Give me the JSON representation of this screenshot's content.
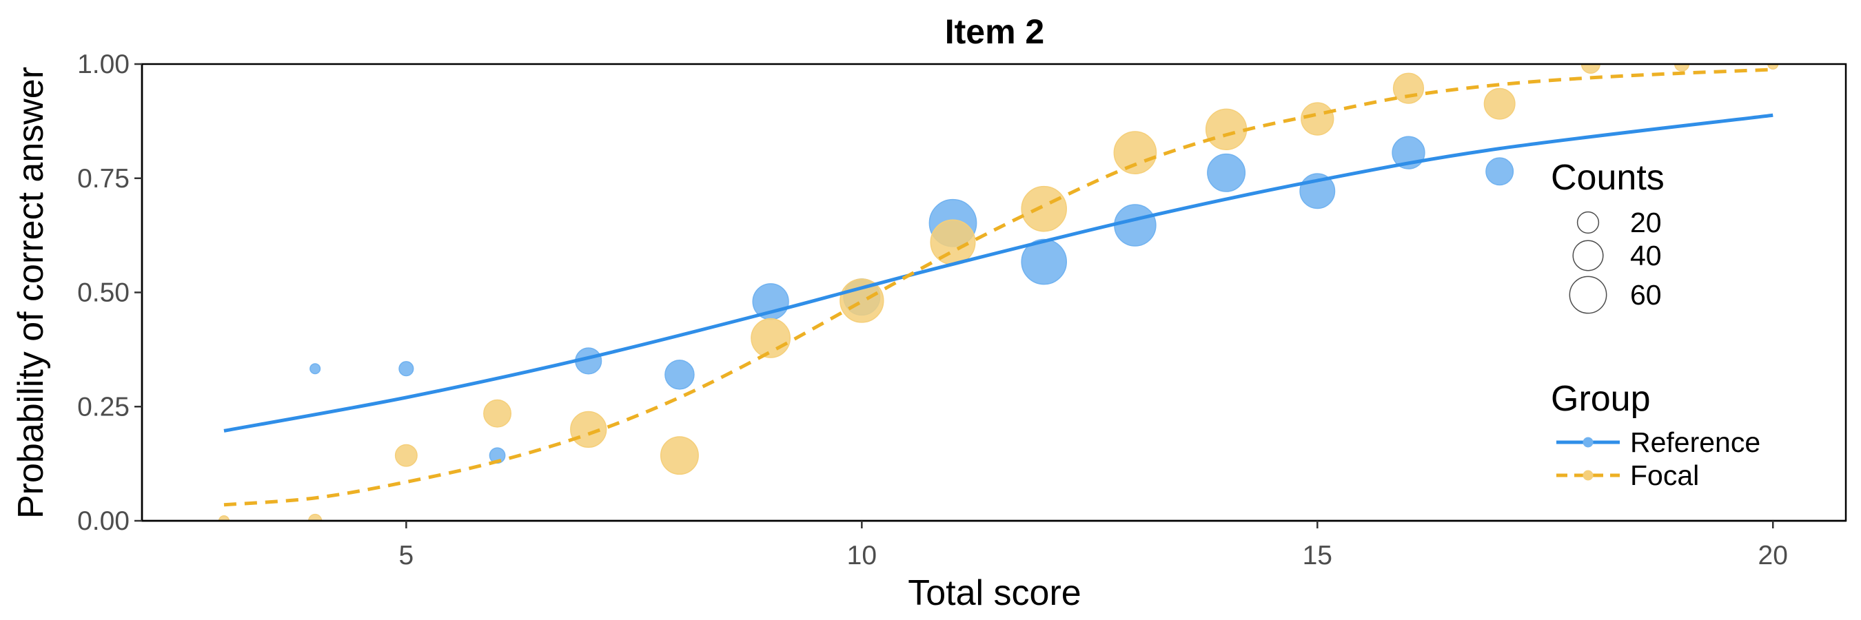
{
  "chart_data": {
    "type": "scatter",
    "title": "Item 2",
    "xlabel": "Total score",
    "ylabel": "Probability of correct answer",
    "xlim": [
      2.1,
      20.8
    ],
    "ylim": [
      0,
      1
    ],
    "x_ticks": [
      5,
      10,
      15,
      20
    ],
    "y_ticks": [
      0,
      0.25,
      0.5,
      0.75,
      1
    ],
    "y_tick_labels": [
      "0.00",
      "0.25",
      "0.50",
      "0.75",
      "1.00"
    ],
    "grid": false,
    "legend_position": "right",
    "size_legend": {
      "title": "Counts",
      "entries": [
        {
          "label": "20",
          "value": 20
        },
        {
          "label": "40",
          "value": 40
        },
        {
          "label": "60",
          "value": 60
        }
      ]
    },
    "group_legend": {
      "title": "Group"
    },
    "series": [
      {
        "name": "Reference",
        "color": "#2f8ee8",
        "point_color": "#70b2f0",
        "line_style": "solid",
        "points": [
          {
            "x": 4,
            "y": 0.333,
            "count": 3
          },
          {
            "x": 5,
            "y": 0.333,
            "count": 6
          },
          {
            "x": 6,
            "y": 0.143,
            "count": 7
          },
          {
            "x": 7,
            "y": 0.35,
            "count": 20
          },
          {
            "x": 8,
            "y": 0.32,
            "count": 25
          },
          {
            "x": 9,
            "y": 0.48,
            "count": 38
          },
          {
            "x": 10,
            "y": 0.49,
            "count": 39
          },
          {
            "x": 11,
            "y": 0.652,
            "count": 66
          },
          {
            "x": 12,
            "y": 0.567,
            "count": 60
          },
          {
            "x": 13,
            "y": 0.647,
            "count": 51
          },
          {
            "x": 14,
            "y": 0.762,
            "count": 42
          },
          {
            "x": 15,
            "y": 0.722,
            "count": 36
          },
          {
            "x": 16,
            "y": 0.806,
            "count": 31
          },
          {
            "x": 17,
            "y": 0.765,
            "count": 22
          }
        ],
        "curve": [
          {
            "x": 3,
            "y": 0.197
          },
          {
            "x": 5,
            "y": 0.27
          },
          {
            "x": 7,
            "y": 0.357
          },
          {
            "x": 9,
            "y": 0.457
          },
          {
            "x": 10,
            "y": 0.51
          },
          {
            "x": 11,
            "y": 0.562
          },
          {
            "x": 13,
            "y": 0.66
          },
          {
            "x": 15,
            "y": 0.745
          },
          {
            "x": 17,
            "y": 0.815
          },
          {
            "x": 20,
            "y": 0.888
          }
        ]
      },
      {
        "name": "Focal",
        "color": "#edb024",
        "point_color": "#f5cf7a",
        "line_style": "dashed",
        "points": [
          {
            "x": 3,
            "y": 0.0,
            "count": 3
          },
          {
            "x": 4,
            "y": 0.0,
            "count": 5
          },
          {
            "x": 5,
            "y": 0.143,
            "count": 14
          },
          {
            "x": 6,
            "y": 0.235,
            "count": 22
          },
          {
            "x": 7,
            "y": 0.2,
            "count": 38
          },
          {
            "x": 8,
            "y": 0.143,
            "count": 42
          },
          {
            "x": 9,
            "y": 0.4,
            "count": 45
          },
          {
            "x": 10,
            "y": 0.482,
            "count": 56
          },
          {
            "x": 11,
            "y": 0.61,
            "count": 59
          },
          {
            "x": 12,
            "y": 0.683,
            "count": 60
          },
          {
            "x": 13,
            "y": 0.806,
            "count": 53
          },
          {
            "x": 14,
            "y": 0.857,
            "count": 49
          },
          {
            "x": 15,
            "y": 0.88,
            "count": 31
          },
          {
            "x": 16,
            "y": 0.947,
            "count": 27
          },
          {
            "x": 17,
            "y": 0.913,
            "count": 28
          },
          {
            "x": 18,
            "y": 1.0,
            "count": 10
          },
          {
            "x": 19,
            "y": 1.0,
            "count": 6
          },
          {
            "x": 20,
            "y": 1.0,
            "count": 3
          }
        ],
        "curve": [
          {
            "x": 3,
            "y": 0.035
          },
          {
            "x": 4,
            "y": 0.05
          },
          {
            "x": 5,
            "y": 0.085
          },
          {
            "x": 6,
            "y": 0.13
          },
          {
            "x": 7,
            "y": 0.19
          },
          {
            "x": 8,
            "y": 0.27
          },
          {
            "x": 9,
            "y": 0.37
          },
          {
            "x": 10,
            "y": 0.48
          },
          {
            "x": 11,
            "y": 0.59
          },
          {
            "x": 12,
            "y": 0.69
          },
          {
            "x": 13,
            "y": 0.78
          },
          {
            "x": 14,
            "y": 0.845
          },
          {
            "x": 15,
            "y": 0.89
          },
          {
            "x": 16,
            "y": 0.93
          },
          {
            "x": 17,
            "y": 0.955
          },
          {
            "x": 18,
            "y": 0.97
          },
          {
            "x": 19,
            "y": 0.98
          },
          {
            "x": 20,
            "y": 0.988
          }
        ]
      }
    ]
  }
}
